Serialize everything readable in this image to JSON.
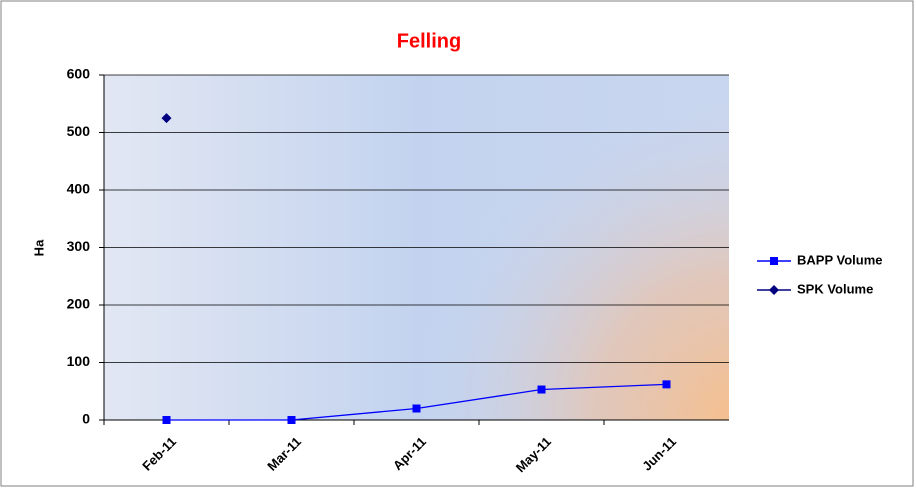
{
  "chart_data": {
    "type": "line",
    "title": "Felling",
    "y_label": "Ha",
    "categories": [
      "Feb-11",
      "Mar-11",
      "Apr-11",
      "May-11",
      "Jun-11"
    ],
    "series": [
      {
        "name": "BAPP Volume",
        "color": "#0000ff",
        "marker": "square",
        "values": [
          0,
          0,
          20,
          53,
          62
        ]
      },
      {
        "name": "SPK Volume",
        "color": "#000080",
        "marker": "diamond",
        "values": [
          525,
          null,
          null,
          null,
          null
        ]
      }
    ],
    "ylim": [
      0,
      600
    ],
    "yticks": [
      0,
      100,
      200,
      300,
      400,
      500,
      600
    ],
    "grid": true,
    "legend": "right"
  }
}
